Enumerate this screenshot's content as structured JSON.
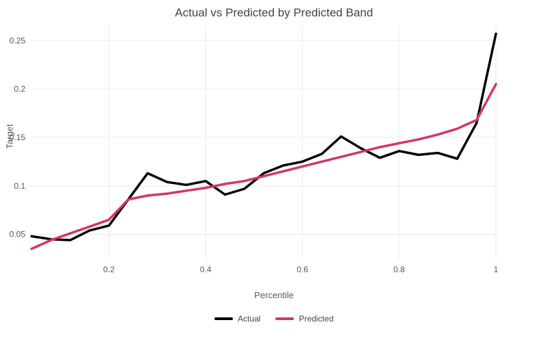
{
  "chart_data": {
    "type": "line",
    "title": "Actual vs Predicted by Predicted Band",
    "xlabel": "Percentile",
    "ylabel": "Target",
    "xlim": [
      0.04,
      1.0
    ],
    "ylim": [
      0.025,
      0.265
    ],
    "grid": true,
    "grid_color": "#e9e9ec",
    "legend_position": "bottom",
    "x_tick_values": [
      0.2,
      0.4,
      0.6,
      0.8,
      1
    ],
    "x_tick_labels": [
      "0.2",
      "0.4",
      "0.6",
      "0.8",
      "1"
    ],
    "y_tick_values": [
      0.05,
      0.1,
      0.15,
      0.2,
      0.25
    ],
    "y_tick_labels": [
      "0.05",
      "0.1",
      "0.15",
      "0.2",
      "0.25"
    ],
    "x": [
      0.04,
      0.08,
      0.12,
      0.16,
      0.2,
      0.24,
      0.28,
      0.32,
      0.36,
      0.4,
      0.44,
      0.48,
      0.52,
      0.56,
      0.6,
      0.64,
      0.68,
      0.72,
      0.76,
      0.8,
      0.84,
      0.88,
      0.92,
      0.96,
      1.0
    ],
    "series": [
      {
        "name": "Actual",
        "color": "#000000",
        "width": 3.5,
        "values": [
          0.048,
          0.045,
          0.044,
          0.054,
          0.059,
          0.086,
          0.113,
          0.104,
          0.101,
          0.105,
          0.091,
          0.097,
          0.113,
          0.121,
          0.125,
          0.133,
          0.151,
          0.139,
          0.129,
          0.136,
          0.132,
          0.134,
          0.128,
          0.165,
          0.257
        ]
      },
      {
        "name": "Predicted",
        "color": "#d6336c",
        "width": 3.5,
        "values": [
          0.035,
          0.044,
          0.051,
          0.058,
          0.065,
          0.086,
          0.09,
          0.092,
          0.095,
          0.098,
          0.102,
          0.105,
          0.11,
          0.115,
          0.12,
          0.125,
          0.13,
          0.135,
          0.14,
          0.144,
          0.148,
          0.153,
          0.159,
          0.168,
          0.205
        ]
      }
    ]
  }
}
